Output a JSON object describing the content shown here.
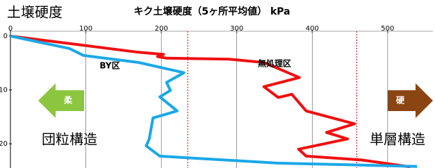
{
  "chart_data": {
    "type": "line",
    "title": "キク土壌硬度（5ヶ所平均値） kPa",
    "y_label": "土壌硬度",
    "xlim": [
      0,
      560
    ],
    "xticks": [
      0,
      100,
      200,
      300,
      400,
      500
    ],
    "ylim": [
      0,
      24.5
    ],
    "yticks": [
      0,
      10,
      20
    ],
    "grid": true,
    "ref_lines": {
      "values": [
        235,
        459
      ],
      "color": "#e0201a"
    },
    "series": [
      {
        "name": "無処理区",
        "color": "#f01010",
        "values": [
          0,
          170,
          203,
          195,
          207,
          290,
          336,
          383,
          336,
          355,
          373,
          392,
          456,
          419,
          447,
          382,
          392,
          465,
          530
        ],
        "depth": [
          0,
          3.0,
          3.4,
          3.8,
          4.1,
          4.3,
          4.9,
          7.7,
          9.4,
          11.4,
          10.8,
          13.9,
          16.3,
          17.9,
          19.1,
          21.0,
          22.3,
          23.0,
          24.3
        ]
      },
      {
        "name": "BY区",
        "color": "#1aa8e8",
        "values": [
          0,
          78,
          97,
          170,
          230,
          207,
          212,
          198,
          221,
          189,
          184,
          180,
          198,
          355,
          539
        ],
        "depth": [
          0,
          2.3,
          3.6,
          4.9,
          6.8,
          8.6,
          10.1,
          11.3,
          13.9,
          15.2,
          19.1,
          20.4,
          22.3,
          23.6,
          24.2
        ]
      }
    ],
    "soft_label": "柔",
    "hard_label": "硬",
    "annotations": [
      "団粒構造",
      "単層構造"
    ]
  }
}
